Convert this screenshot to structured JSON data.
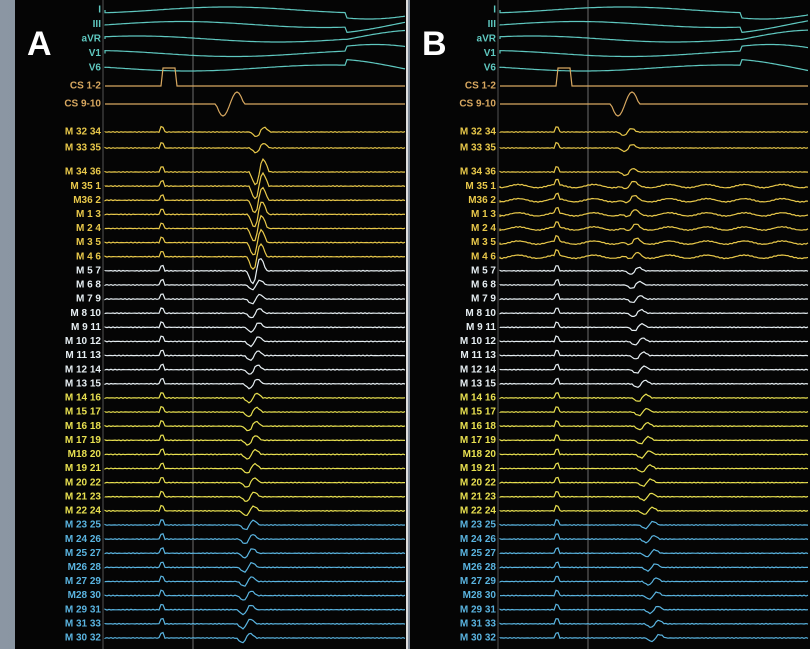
{
  "panels": [
    {
      "label": "A"
    },
    {
      "label": "B"
    }
  ],
  "channels": [
    {
      "label": "I",
      "color": "#5fc8c0"
    },
    {
      "label": "III",
      "color": "#5fc8c0"
    },
    {
      "label": "aVR",
      "color": "#5fc8c0"
    },
    {
      "label": "V1",
      "color": "#5fc8c0"
    },
    {
      "label": "V6",
      "color": "#5fc8c0"
    },
    {
      "label": "CS 1-2",
      "color": "#d8a860"
    },
    {
      "label": "CS 9-10",
      "color": "#d8a860"
    },
    {
      "label": "M 32 34",
      "color": "#e8c84a"
    },
    {
      "label": "M 33 35",
      "color": "#e8c84a"
    },
    {
      "label": "M 34 36",
      "color": "#e8c84a"
    },
    {
      "label": "M 35 1",
      "color": "#e8c84a"
    },
    {
      "label": "M36 2",
      "color": "#e8c84a"
    },
    {
      "label": "M 1 3",
      "color": "#e8c84a"
    },
    {
      "label": "M 2 4",
      "color": "#e8c84a"
    },
    {
      "label": "M 3 5",
      "color": "#e8c84a"
    },
    {
      "label": "M 4 6",
      "color": "#e8c84a"
    },
    {
      "label": "M 5 7",
      "color": "#e6eef2"
    },
    {
      "label": "M 6 8",
      "color": "#e6eef2"
    },
    {
      "label": "M 7 9",
      "color": "#e6eef2"
    },
    {
      "label": "M 8 10",
      "color": "#e6eef2"
    },
    {
      "label": "M 9 11",
      "color": "#e6eef2"
    },
    {
      "label": "M 10 12",
      "color": "#e6eef2"
    },
    {
      "label": "M 11 13",
      "color": "#e6eef2"
    },
    {
      "label": "M 12 14",
      "color": "#e6eef2"
    },
    {
      "label": "M 13 15",
      "color": "#e6eef2"
    },
    {
      "label": "M 14 16",
      "color": "#e8e050"
    },
    {
      "label": "M 15 17",
      "color": "#e8e050"
    },
    {
      "label": "M 16 18",
      "color": "#e8e050"
    },
    {
      "label": "M 17 19",
      "color": "#e8e050"
    },
    {
      "label": "M18 20",
      "color": "#e8e050"
    },
    {
      "label": "M 19 21",
      "color": "#e8e050"
    },
    {
      "label": "M 20 22",
      "color": "#e8e050"
    },
    {
      "label": "M 21 23",
      "color": "#e8e050"
    },
    {
      "label": "M 22 24",
      "color": "#e8e050"
    },
    {
      "label": "M 23 25",
      "color": "#5ab4e0"
    },
    {
      "label": "M 24 26",
      "color": "#5ab4e0"
    },
    {
      "label": "M 25 27",
      "color": "#5ab4e0"
    },
    {
      "label": "M26 28",
      "color": "#5ab4e0"
    },
    {
      "label": "M 27 29",
      "color": "#5ab4e0"
    },
    {
      "label": "M28 30",
      "color": "#5ab4e0"
    },
    {
      "label": "M 29 31",
      "color": "#5ab4e0"
    },
    {
      "label": "M 31 33",
      "color": "#5ab4e0"
    },
    {
      "label": "M 30 32",
      "color": "#5ab4e0"
    }
  ]
}
